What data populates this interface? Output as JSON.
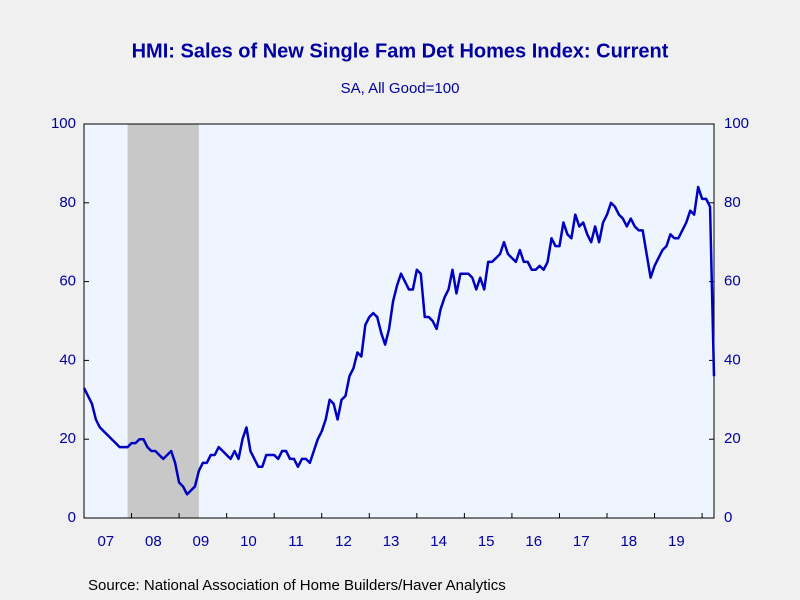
{
  "chart_data": {
    "type": "line",
    "title": "HMI: Sales of New Single Fam Det Homes Index: Current",
    "subtitle": "SA, All Good=100",
    "source": "Source:  National Association of Home Builders/Haver Analytics",
    "categories": [
      null,
      null,
      null,
      null,
      null,
      null,
      "07",
      null,
      null,
      null,
      null,
      null,
      null,
      null,
      null,
      null,
      null,
      null,
      "08",
      null,
      null,
      null,
      null,
      null,
      null,
      null,
      null,
      null,
      null,
      null,
      "09",
      null,
      null,
      null,
      null,
      null,
      null,
      null,
      null,
      null,
      null,
      null,
      "10",
      null,
      null,
      null,
      null,
      null,
      null,
      null,
      null,
      null,
      null,
      null,
      "11",
      null,
      null,
      null,
      null,
      null,
      null,
      null,
      null,
      null,
      null,
      null,
      "12",
      null,
      null,
      null,
      null,
      null,
      null,
      null,
      null,
      null,
      null,
      null,
      "13",
      null,
      null,
      null,
      null,
      null,
      null,
      null,
      null,
      null,
      null,
      null,
      "14",
      null,
      null,
      null,
      null,
      null,
      null,
      null,
      null,
      null,
      null,
      null,
      "15",
      null,
      null,
      null,
      null,
      null,
      null,
      null,
      null,
      null,
      null,
      null,
      "16",
      null,
      null,
      null,
      null,
      null,
      null,
      null,
      null,
      null,
      null,
      null,
      "17",
      null,
      null,
      null,
      null,
      null,
      null,
      null,
      null,
      null,
      null,
      null,
      "18",
      null,
      null,
      null,
      null,
      null,
      null,
      null,
      null,
      null,
      null,
      null,
      "19",
      null,
      null,
      null,
      null,
      null,
      null,
      null,
      null,
      null
    ],
    "series": [
      {
        "name": "HMI: Sales of New Single Fam Det Homes Index: Current",
        "color": "#0000c0",
        "values": [
          33,
          31,
          29,
          25,
          23,
          22,
          21,
          20,
          19,
          18,
          18,
          18,
          19,
          19,
          20,
          20,
          18,
          17,
          17,
          16,
          15,
          16,
          17,
          14,
          9,
          8,
          6,
          7,
          8,
          12,
          14,
          14,
          16,
          16,
          18,
          17,
          16,
          15,
          17,
          15,
          20,
          23,
          17,
          15,
          13,
          13,
          16,
          16,
          16,
          15,
          17,
          17,
          15,
          15,
          13,
          15,
          15,
          14,
          17,
          20,
          22,
          25,
          30,
          29,
          25,
          30,
          31,
          36,
          38,
          42,
          41,
          49,
          51,
          52,
          51,
          47,
          44,
          48,
          55,
          59,
          62,
          60,
          58,
          58,
          63,
          62,
          51,
          51,
          50,
          48,
          53,
          56,
          58,
          63,
          57,
          62,
          62,
          62,
          61,
          58,
          61,
          58,
          65,
          65,
          66,
          67,
          70,
          67,
          66,
          65,
          68,
          65,
          65,
          63,
          63,
          64,
          63,
          65,
          71,
          69,
          69,
          75,
          72,
          71,
          77,
          74,
          75,
          72,
          70,
          74,
          70,
          75,
          77,
          80,
          79,
          77,
          76,
          74,
          76,
          74,
          73,
          73,
          67,
          61,
          64,
          66,
          68,
          69,
          72,
          71,
          71,
          73,
          75,
          78,
          77,
          84,
          81,
          81,
          79,
          36
        ]
      }
    ],
    "recession_shading": [
      [
        11,
        29
      ]
    ],
    "ylim": [
      0,
      100
    ],
    "yticks": [
      0,
      20,
      40,
      60,
      80,
      100
    ],
    "y2lim": [
      0,
      100
    ],
    "y2ticks": [
      0,
      20,
      40,
      60,
      80,
      100
    ]
  }
}
